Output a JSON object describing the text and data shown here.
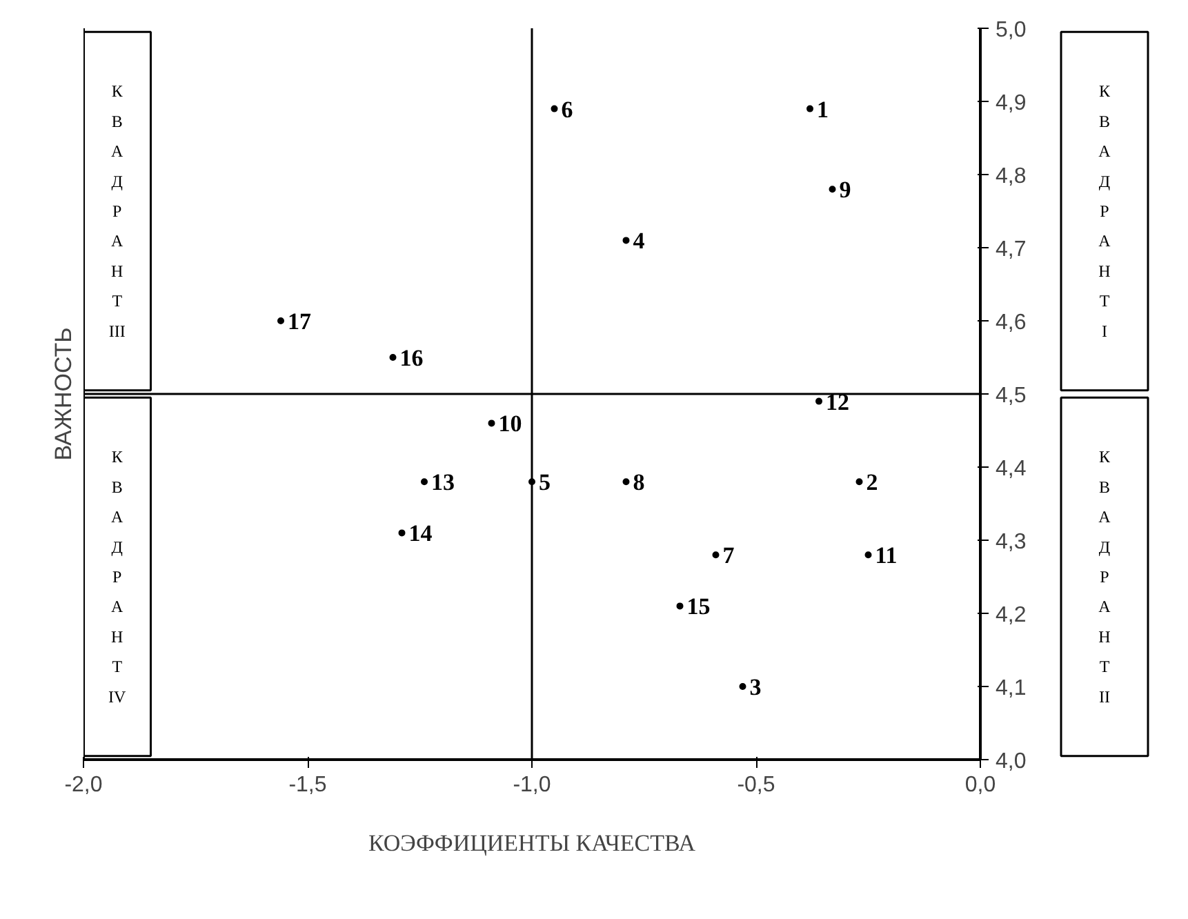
{
  "chart_data": {
    "type": "scatter",
    "xlabel": "КОЭФФИЦИЕНТЫ КАЧЕСТВА",
    "ylabel": "ВАЖНОСТЬ",
    "series": [
      {
        "name": "1",
        "color": "#000000",
        "x": [
          -0.38
        ],
        "values": [
          4.89
        ]
      },
      {
        "name": "2",
        "color": "#000000",
        "x": [
          -0.27
        ],
        "values": [
          4.38
        ]
      },
      {
        "name": "3",
        "color": "#000000",
        "x": [
          -0.53
        ],
        "values": [
          4.1
        ]
      },
      {
        "name": "4",
        "color": "#000000",
        "x": [
          -0.79
        ],
        "values": [
          4.71
        ]
      },
      {
        "name": "5",
        "color": "#000000",
        "x": [
          -1.0
        ],
        "values": [
          4.38
        ]
      },
      {
        "name": "6",
        "color": "#000000",
        "x": [
          -0.95
        ],
        "values": [
          4.89
        ]
      },
      {
        "name": "7",
        "color": "#000000",
        "x": [
          -0.59
        ],
        "values": [
          4.28
        ]
      },
      {
        "name": "8",
        "color": "#000000",
        "x": [
          -0.79
        ],
        "values": [
          4.38
        ]
      },
      {
        "name": "9",
        "color": "#000000",
        "x": [
          -0.33
        ],
        "values": [
          4.78
        ]
      },
      {
        "name": "10",
        "color": "#000000",
        "x": [
          -1.09
        ],
        "values": [
          4.46
        ]
      },
      {
        "name": "11",
        "color": "#000000",
        "x": [
          -0.25
        ],
        "values": [
          4.28
        ]
      },
      {
        "name": "12",
        "color": "#000000",
        "x": [
          -0.36
        ],
        "values": [
          4.49
        ]
      },
      {
        "name": "13",
        "color": "#000000",
        "x": [
          -1.24
        ],
        "values": [
          4.38
        ]
      },
      {
        "name": "14",
        "color": "#000000",
        "x": [
          -1.29
        ],
        "values": [
          4.31
        ]
      },
      {
        "name": "15",
        "color": "#000000",
        "x": [
          -0.67
        ],
        "values": [
          4.21
        ]
      },
      {
        "name": "16",
        "color": "#000000",
        "x": [
          -1.31
        ],
        "values": [
          4.55
        ]
      },
      {
        "name": "17",
        "color": "#000000",
        "x": [
          -1.56
        ],
        "values": [
          4.6
        ]
      }
    ],
    "marker": "circle",
    "grid": false,
    "xlim": [
      -2.0,
      0.0
    ],
    "xticks": [
      {
        "value": -2.0,
        "label": "-2,0"
      },
      {
        "value": -1.5,
        "label": "-1,5"
      },
      {
        "value": -1.0,
        "label": "-1,0"
      },
      {
        "value": -0.5,
        "label": "-0,5"
      },
      {
        "value": 0.0,
        "label": "0,0"
      }
    ],
    "ylim": [
      4.0,
      5.0
    ],
    "yticks": [
      {
        "value": 4.0,
        "label": "4,0"
      },
      {
        "value": 4.1,
        "label": "4,1"
      },
      {
        "value": 4.2,
        "label": "4,2"
      },
      {
        "value": 4.3,
        "label": "4,3"
      },
      {
        "value": 4.4,
        "label": "4,4"
      },
      {
        "value": 4.5,
        "label": "4,5"
      },
      {
        "value": 4.6,
        "label": "4,6"
      },
      {
        "value": 4.7,
        "label": "4,7"
      },
      {
        "value": 4.8,
        "label": "4,8"
      },
      {
        "value": 4.9,
        "label": "4,9"
      },
      {
        "value": 5.0,
        "label": "5,0"
      }
    ],
    "ref_lines": [
      {
        "axis": "x",
        "value": -1.0,
        "color": "#000000"
      },
      {
        "axis": "y",
        "value": 4.5,
        "color": "#000000"
      }
    ],
    "annotations": [
      "КВАДРАНТ III",
      "КВАДРАНТ IV",
      "КВАДРАНТ I",
      "КВАДРАНТ II"
    ]
  }
}
